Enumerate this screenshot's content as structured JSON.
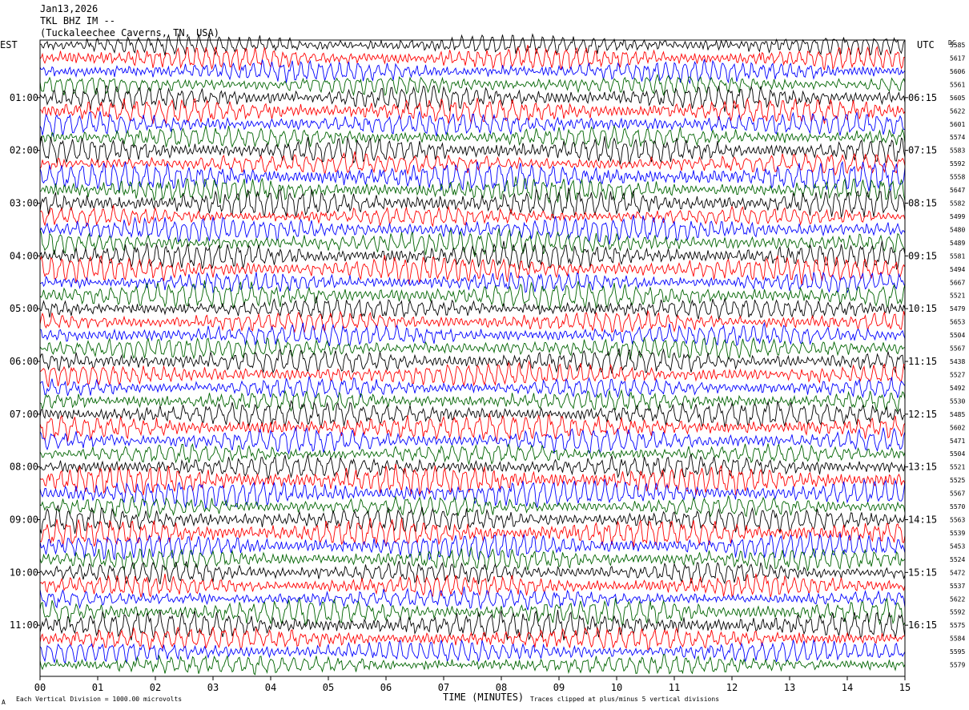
{
  "header": {
    "date": "Jan13,2026",
    "station": "TKL BHZ IM --",
    "location": "(Tuckaleechee Caverns, TN, USA)"
  },
  "axes": {
    "left_zone": "EST",
    "right_zone": "UTC",
    "dc_label": "DC",
    "xlabel": "TIME (MINUTES)"
  },
  "footer": {
    "scale_note": "Each Vertical Division = 1000.00 microvolts",
    "clip_note": "Traces clipped at plus/minus 5 vertical divisions",
    "corner_mark": "A"
  },
  "chart_data": {
    "type": "line",
    "title": "TKL BHZ IM --",
    "xlabel": "TIME (MINUTES)",
    "xlim": [
      0,
      15
    ],
    "x_ticks": [
      "00",
      "01",
      "02",
      "03",
      "04",
      "05",
      "06",
      "07",
      "08",
      "09",
      "10",
      "11",
      "12",
      "13",
      "14",
      "15"
    ],
    "left_time_labels": [
      "01:00",
      "02:00",
      "03:00",
      "04:00",
      "05:00",
      "06:00",
      "07:00",
      "08:00",
      "09:00",
      "10:00",
      "11:00"
    ],
    "right_time_labels": [
      "06:15",
      "07:15",
      "08:15",
      "09:15",
      "10:15",
      "11:15",
      "12:15",
      "13:15",
      "14:15",
      "15:15",
      "16:15"
    ],
    "trace_colors": [
      "#000000",
      "#ff0000",
      "#0000ff",
      "#006400"
    ],
    "trace_dc_values": [
      5585,
      5617,
      5606,
      5561,
      5605,
      5622,
      5601,
      5574,
      5583,
      5592,
      5558,
      5647,
      5582,
      5499,
      5480,
      5489,
      5581,
      5494,
      5667,
      5521,
      5479,
      5653,
      5504,
      5567,
      5438,
      5527,
      5492,
      5530,
      5485,
      5602,
      5471,
      5504,
      5521,
      5525,
      5567,
      5570,
      5563,
      5539,
      5453,
      5524,
      5472,
      5537,
      5622,
      5592,
      5575,
      5584,
      5595,
      5579
    ],
    "grid": false
  }
}
